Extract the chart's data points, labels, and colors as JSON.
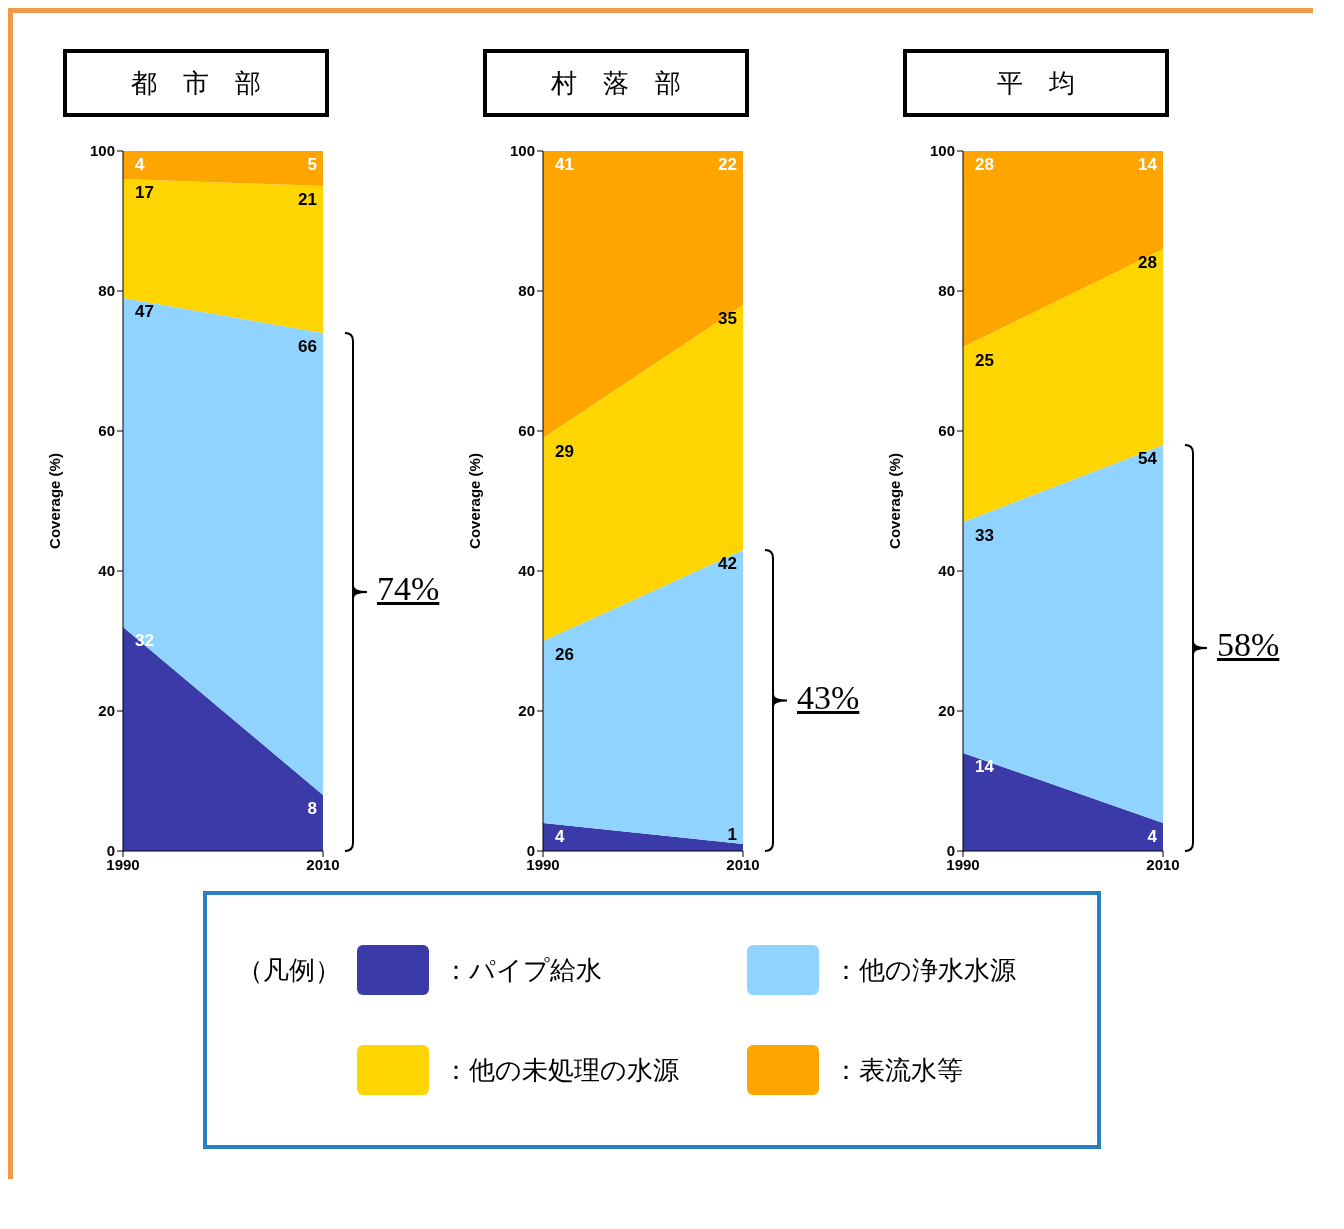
{
  "chart_data": [
    {
      "type": "area",
      "title": "都　市　部",
      "ylabel": "Coverage (%)",
      "categories": [
        "1990",
        "2010"
      ],
      "stacked": true,
      "ylim": [
        0,
        100
      ],
      "yticks": [
        0,
        20,
        40,
        60,
        80,
        100
      ],
      "data_labels": true,
      "legend": "bottom",
      "legend_title": "（凡例）",
      "annotations": [
        "74%"
      ],
      "series": [
        {
          "name": "：パイプ給水",
          "color": "#3a3aa8",
          "values": [
            32,
            8
          ]
        },
        {
          "name": "：他の浄水水源",
          "color": "#8fd3fe",
          "values": [
            47,
            66
          ]
        },
        {
          "name": "：他の未処理の水源",
          "color": "#ffd500",
          "values": [
            17,
            21
          ]
        },
        {
          "name": "：表流水等",
          "color": "#ffa500",
          "values": [
            4,
            5
          ]
        }
      ]
    },
    {
      "type": "area",
      "title": "村　落　部",
      "ylabel": "Coverage (%)",
      "categories": [
        "1990",
        "2010"
      ],
      "stacked": true,
      "ylim": [
        0,
        100
      ],
      "yticks": [
        0,
        20,
        40,
        60,
        80,
        100
      ],
      "data_labels": true,
      "annotations": [
        "43%"
      ],
      "series": [
        {
          "color": "#3a3aa8",
          "values": [
            4,
            1
          ]
        },
        {
          "color": "#8fd3fe",
          "values": [
            26,
            42
          ]
        },
        {
          "color": "#ffd500",
          "values": [
            29,
            35
          ]
        },
        {
          "color": "#ffa500",
          "values": [
            41,
            22
          ]
        }
      ]
    },
    {
      "type": "area",
      "title": "平　均",
      "ylabel": "Coverage (%)",
      "categories": [
        "1990",
        "2010"
      ],
      "stacked": true,
      "ylim": [
        0,
        100
      ],
      "yticks": [
        0,
        20,
        40,
        60,
        80,
        100
      ],
      "data_labels": true,
      "annotations": [
        "58%"
      ],
      "series": [
        {
          "color": "#3a3aa8",
          "values": [
            14,
            4
          ]
        },
        {
          "color": "#8fd3fe",
          "values": [
            33,
            54
          ]
        },
        {
          "color": "#ffd500",
          "values": [
            25,
            28
          ]
        },
        {
          "color": "#ffa500",
          "values": [
            28,
            14
          ]
        }
      ]
    }
  ]
}
